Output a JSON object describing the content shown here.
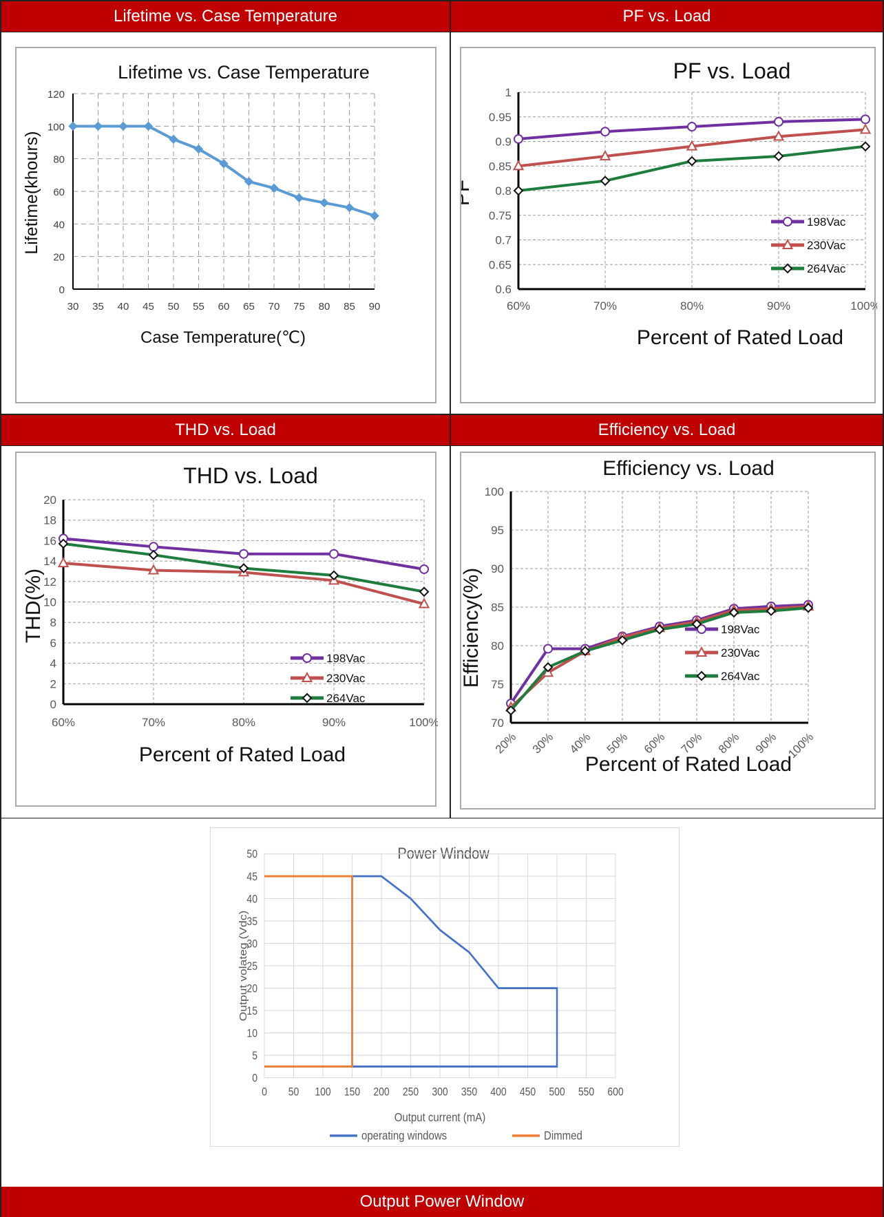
{
  "headers": {
    "lifetime": "Lifetime vs. Case Temperature",
    "pf": "PF vs. Load",
    "thd": "THD vs. Load",
    "efficiency": "Efficiency vs. Load",
    "power_window": "Output Power Window"
  },
  "colors": {
    "header_bg": "#c00000",
    "series_198": "#7030a0",
    "series_230": "#c0504d",
    "series_264": "#1e7d3c",
    "lifetime_line": "#5b9bd5",
    "operating": "#4472c4",
    "dimmed": "#ed7d31"
  },
  "chart_data": [
    {
      "id": "lifetime",
      "type": "line",
      "title": "Lifetime vs. Case Temperature",
      "xlabel": "Case Temperature(℃)",
      "ylabel": "Lifetime(khours)",
      "x": [
        30,
        35,
        40,
        45,
        50,
        55,
        60,
        65,
        70,
        75,
        80,
        85,
        90
      ],
      "series": [
        {
          "values": [
            100,
            100,
            100,
            100,
            92,
            86,
            77,
            66,
            62,
            56,
            53,
            50,
            45
          ]
        }
      ],
      "xlim": [
        30,
        90
      ],
      "ylim": [
        0,
        120
      ],
      "yticks": [
        "0",
        "20",
        "40",
        "60",
        "80",
        "100",
        "120"
      ],
      "xticks": [
        "30",
        "35",
        "40",
        "45",
        "50",
        "55",
        "60",
        "65",
        "70",
        "75",
        "80",
        "85",
        "90"
      ],
      "grid": true
    },
    {
      "id": "pf",
      "type": "line",
      "title": "PF vs. Load",
      "xlabel": "Percent of Rated Load",
      "ylabel": "PF",
      "categories": [
        "60%",
        "70%",
        "80%",
        "90%",
        "100%"
      ],
      "series": [
        {
          "name": "198Vac",
          "values": [
            0.905,
            0.92,
            0.93,
            0.94,
            0.945
          ]
        },
        {
          "name": "230Vac",
          "values": [
            0.85,
            0.87,
            0.89,
            0.91,
            0.924
          ]
        },
        {
          "name": "264Vac",
          "values": [
            0.8,
            0.82,
            0.86,
            0.87,
            0.89
          ]
        }
      ],
      "ylim": [
        0.6,
        1
      ],
      "yticks": [
        "0.6",
        "0.65",
        "0.7",
        "0.75",
        "0.8",
        "0.85",
        "0.9",
        "0.95",
        "1"
      ],
      "legend": "right",
      "grid": true
    },
    {
      "id": "thd",
      "type": "line",
      "title": "THD vs. Load",
      "xlabel": "Percent of Rated Load",
      "ylabel": "THD(%)",
      "categories": [
        "60%",
        "70%",
        "80%",
        "90%",
        "100%"
      ],
      "series": [
        {
          "name": "198Vac",
          "values": [
            16.2,
            15.4,
            14.7,
            14.7,
            13.2
          ]
        },
        {
          "name": "230Vac",
          "values": [
            13.8,
            13.1,
            12.9,
            12.1,
            9.8
          ]
        },
        {
          "name": "264Vac",
          "values": [
            15.7,
            14.6,
            13.3,
            12.6,
            11.0
          ]
        }
      ],
      "ylim": [
        0,
        20
      ],
      "yticks": [
        "0",
        "2",
        "4",
        "6",
        "8",
        "10",
        "12",
        "14",
        "16",
        "18",
        "20"
      ],
      "legend": "right",
      "grid": true
    },
    {
      "id": "efficiency",
      "type": "line",
      "title": "Efficiency vs. Load",
      "xlabel": "Percent of Rated Load",
      "ylabel": "Efficiency(%)",
      "categories": [
        "20%",
        "30%",
        "40%",
        "50%",
        "60%",
        "70%",
        "80%",
        "90%",
        "100%"
      ],
      "series": [
        {
          "name": "198Vac",
          "values": [
            72.5,
            79.6,
            79.6,
            81.2,
            82.5,
            83.3,
            84.8,
            85.1,
            85.3
          ]
        },
        {
          "name": "230Vac",
          "values": [
            72.0,
            76.5,
            79.3,
            81.1,
            82.3,
            83.1,
            84.6,
            84.8,
            85.1
          ]
        },
        {
          "name": "264Vac",
          "values": [
            71.6,
            77.2,
            79.3,
            80.7,
            82.1,
            82.8,
            84.3,
            84.5,
            84.9
          ]
        }
      ],
      "ylim": [
        70,
        100
      ],
      "yticks": [
        "70",
        "75",
        "80",
        "85",
        "90",
        "95",
        "100"
      ],
      "legend": "right",
      "grid": true
    },
    {
      "id": "power_window",
      "type": "line",
      "title": "Power Window",
      "xlabel": "Output current (mA)",
      "ylabel": "Output volateg (Vdc)",
      "series": [
        {
          "name": "operating windows",
          "points": [
            [
              150,
              2.5
            ],
            [
              150,
              45
            ],
            [
              200,
              45
            ],
            [
              250,
              40
            ],
            [
              300,
              33
            ],
            [
              350,
              28
            ],
            [
              400,
              20
            ],
            [
              500,
              20
            ],
            [
              500,
              2.5
            ],
            [
              150,
              2.5
            ]
          ]
        },
        {
          "name": "Dimmed",
          "points": [
            [
              0,
              45
            ],
            [
              150,
              45
            ],
            [
              150,
              2.5
            ],
            [
              0,
              2.5
            ]
          ]
        }
      ],
      "xlim": [
        0,
        600
      ],
      "ylim": [
        0,
        50
      ],
      "xticks": [
        "0",
        "50",
        "100",
        "150",
        "200",
        "250",
        "300",
        "350",
        "400",
        "450",
        "500",
        "550",
        "600"
      ],
      "yticks": [
        "0",
        "5",
        "10",
        "15",
        "20",
        "25",
        "30",
        "35",
        "40",
        "45",
        "50"
      ],
      "legend": "bottom",
      "grid": true
    }
  ]
}
